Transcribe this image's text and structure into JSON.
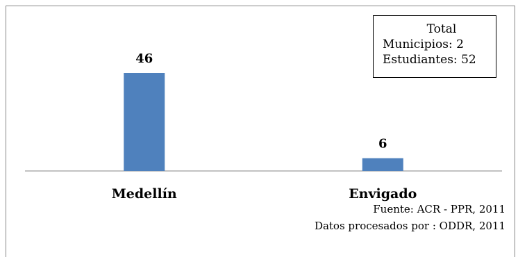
{
  "chart_data": {
    "type": "bar",
    "categories": [
      "Medellín",
      "Envigado"
    ],
    "values": [
      46,
      6
    ],
    "data_labels": [
      "46",
      "6"
    ],
    "title": "",
    "xlabel": "",
    "ylabel": "",
    "ylim": [
      0,
      52
    ],
    "grid": false,
    "bar_color": "#4f81bd"
  },
  "info_box": {
    "title": "Total",
    "municipios": "Municipios: 2",
    "estudiantes": "Estudiantes: 52"
  },
  "source": {
    "line1": "Fuente: ACR - PPR, 2011",
    "line2": "Datos procesados por : ODDR, 2011"
  }
}
